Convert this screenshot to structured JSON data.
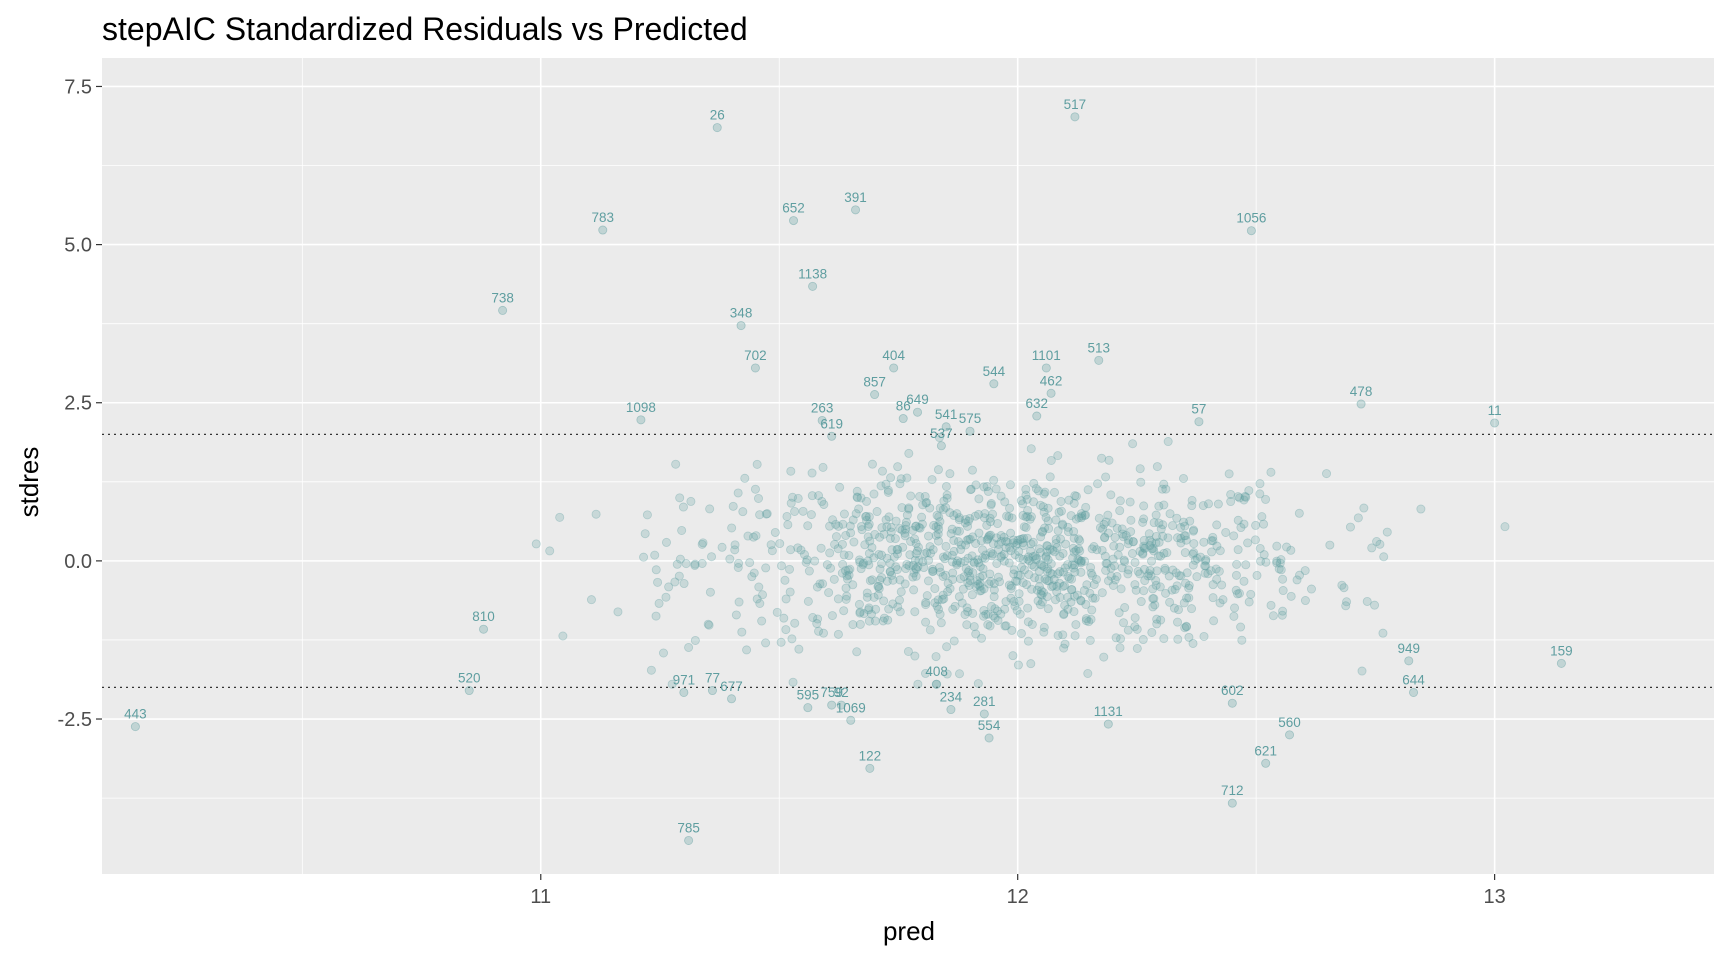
{
  "chart_data": {
    "type": "scatter",
    "title": "stepAIC Standardized Residuals vs Predicted",
    "xlabel": "pred",
    "ylabel": "stdres",
    "xlim": [
      10.08,
      13.46
    ],
    "ylim": [
      -4.95,
      7.95
    ],
    "xticks": [
      11,
      12,
      13
    ],
    "xtick_labels": [
      "11",
      "12",
      "13"
    ],
    "yticks": [
      -2.5,
      0,
      2.5,
      5,
      7.5
    ],
    "ytick_labels": [
      "-2.5",
      "0.0",
      "2.5",
      "5.0",
      "7.5"
    ],
    "reference_lines": [
      2,
      -2
    ],
    "grid": true,
    "point_color": "#5f9ea0",
    "panel_background": "#ebebeb",
    "labeled_points": [
      {
        "id": "517",
        "x": 12.12,
        "y": 7.02
      },
      {
        "id": "26",
        "x": 11.37,
        "y": 6.85
      },
      {
        "id": "391",
        "x": 11.66,
        "y": 5.55
      },
      {
        "id": "783",
        "x": 11.13,
        "y": 5.23
      },
      {
        "id": "652",
        "x": 11.53,
        "y": 5.38
      },
      {
        "id": "1056",
        "x": 12.49,
        "y": 5.22
      },
      {
        "id": "1138",
        "x": 11.57,
        "y": 4.34
      },
      {
        "id": "738",
        "x": 10.92,
        "y": 3.96
      },
      {
        "id": "348",
        "x": 11.42,
        "y": 3.72
      },
      {
        "id": "702",
        "x": 11.45,
        "y": 3.05
      },
      {
        "id": "404",
        "x": 11.74,
        "y": 3.05
      },
      {
        "id": "1101",
        "x": 12.06,
        "y": 3.05
      },
      {
        "id": "513",
        "x": 12.17,
        "y": 3.17
      },
      {
        "id": "544",
        "x": 11.95,
        "y": 2.8
      },
      {
        "id": "462",
        "x": 12.07,
        "y": 2.65
      },
      {
        "id": "857",
        "x": 11.7,
        "y": 2.63
      },
      {
        "id": "649",
        "x": 11.79,
        "y": 2.35
      },
      {
        "id": "86",
        "x": 11.76,
        "y": 2.25
      },
      {
        "id": "541",
        "x": 11.85,
        "y": 2.12
      },
      {
        "id": "263",
        "x": 11.59,
        "y": 2.22
      },
      {
        "id": "575",
        "x": 11.9,
        "y": 2.05
      },
      {
        "id": "632",
        "x": 12.04,
        "y": 2.29
      },
      {
        "id": "57",
        "x": 12.38,
        "y": 2.2
      },
      {
        "id": "478",
        "x": 12.72,
        "y": 2.48
      },
      {
        "id": "11",
        "x": 13.0,
        "y": 2.18
      },
      {
        "id": "619",
        "x": 11.61,
        "y": 1.97
      },
      {
        "id": "537",
        "x": 11.84,
        "y": 1.82
      },
      {
        "id": "1098",
        "x": 11.21,
        "y": 2.23
      },
      {
        "id": "443",
        "x": 10.15,
        "y": -2.62
      },
      {
        "id": "520",
        "x": 10.85,
        "y": -2.05
      },
      {
        "id": "810",
        "x": 10.88,
        "y": -1.08
      },
      {
        "id": "971",
        "x": 11.3,
        "y": -2.08
      },
      {
        "id": "77",
        "x": 11.36,
        "y": -2.05
      },
      {
        "id": "677",
        "x": 11.4,
        "y": -2.18
      },
      {
        "id": "595",
        "x": 11.56,
        "y": -2.32
      },
      {
        "id": "92",
        "x": 11.63,
        "y": -2.28
      },
      {
        "id": "1069",
        "x": 11.65,
        "y": -2.52
      },
      {
        "id": "759",
        "x": 11.61,
        "y": -2.28
      },
      {
        "id": "408",
        "x": 11.83,
        "y": -1.95
      },
      {
        "id": "234",
        "x": 11.86,
        "y": -2.35
      },
      {
        "id": "554",
        "x": 11.94,
        "y": -2.8
      },
      {
        "id": "281",
        "x": 11.93,
        "y": -2.42
      },
      {
        "id": "122",
        "x": 11.69,
        "y": -3.28
      },
      {
        "id": "785",
        "x": 11.31,
        "y": -4.42
      },
      {
        "id": "1131",
        "x": 12.19,
        "y": -2.58
      },
      {
        "id": "602",
        "x": 12.45,
        "y": -2.25
      },
      {
        "id": "712",
        "x": 12.45,
        "y": -3.83
      },
      {
        "id": "621",
        "x": 12.52,
        "y": -3.2
      },
      {
        "id": "560",
        "x": 12.57,
        "y": -2.75
      },
      {
        "id": "644",
        "x": 12.83,
        "y": -2.08
      },
      {
        "id": "949",
        "x": 12.82,
        "y": -1.58
      },
      {
        "id": "159",
        "x": 13.14,
        "y": -1.62
      }
    ]
  }
}
